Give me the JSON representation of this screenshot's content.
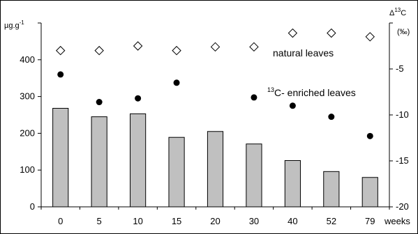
{
  "chart_data": {
    "type": "bar",
    "categories": [
      "0",
      "5",
      "10",
      "15",
      "20",
      "30",
      "40",
      "52",
      "79"
    ],
    "xlabel": "weeks",
    "left_axis": {
      "label": "µg.g",
      "label_sup": "-1",
      "ylim": [
        0,
        500
      ],
      "ticks": [
        "0",
        "100",
        "200",
        "300",
        "400"
      ]
    },
    "right_axis": {
      "label": "Δ",
      "label_sup": "13",
      "label_tail": "C",
      "unit": "(‰)",
      "ylim": [
        -20,
        0
      ],
      "ticks": [
        "-5",
        "-10",
        "-15",
        "-20"
      ]
    },
    "series": [
      {
        "values": [
          268,
          245,
          253,
          189,
          205,
          171,
          126,
          96,
          80
        ],
        "axis": "left",
        "style": "gray-bars"
      },
      {
        "name": "natural leaves",
        "values": [
          -3.0,
          -3.0,
          -2.5,
          -3.0,
          -2.6,
          -2.6,
          -1.1,
          -1.1,
          -1.5
        ],
        "axis": "right",
        "marker": "open-diamond"
      },
      {
        "name": "C- enriched leaves",
        "name_sup": "13",
        "values": [
          -5.6,
          -8.6,
          -8.2,
          -6.5,
          null,
          -8.1,
          -9.0,
          -10.2,
          -12.3
        ],
        "axis": "right",
        "marker": "filled-circle"
      }
    ],
    "annotations": [
      {
        "text": "natural leaves"
      },
      {
        "sup": "13",
        "text": "C- enriched leaves"
      }
    ],
    "colors": {
      "bar_fill": "#c0c0c0",
      "bar_stroke": "#000000",
      "marker": "#000000"
    },
    "grid": false,
    "legend": "none"
  }
}
